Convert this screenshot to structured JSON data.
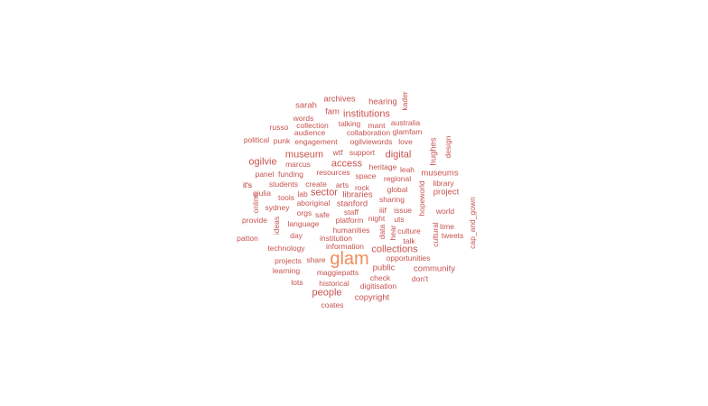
{
  "words": [
    {
      "text": "glam",
      "weight": 10,
      "color": "#f08c5c"
    },
    {
      "text": "ogilvie",
      "weight": 4
    },
    {
      "text": "digital",
      "weight": 4
    },
    {
      "text": "museum",
      "weight": 4
    },
    {
      "text": "access",
      "weight": 4
    },
    {
      "text": "collections",
      "weight": 4
    },
    {
      "text": "people",
      "weight": 4
    },
    {
      "text": "institutions",
      "weight": 4
    },
    {
      "text": "sector",
      "weight": 4
    },
    {
      "text": "copyright",
      "weight": 3
    },
    {
      "text": "public",
      "weight": 3
    },
    {
      "text": "community",
      "weight": 3
    },
    {
      "text": "museums",
      "weight": 3
    },
    {
      "text": "project",
      "weight": 3
    },
    {
      "text": "archives",
      "weight": 3
    },
    {
      "text": "hearing",
      "weight": 3
    },
    {
      "text": "sarah",
      "weight": 3
    },
    {
      "text": "fam",
      "weight": 3
    },
    {
      "text": "libraries",
      "weight": 3
    },
    {
      "text": "stanford",
      "weight": 3
    },
    {
      "text": "hughes",
      "weight": 3
    },
    {
      "text": "kader",
      "weight": 2
    },
    {
      "text": "words",
      "weight": 2
    },
    {
      "text": "russo",
      "weight": 2
    },
    {
      "text": "collection",
      "weight": 2
    },
    {
      "text": "talking",
      "weight": 2
    },
    {
      "text": "mant",
      "weight": 2
    },
    {
      "text": "australia",
      "weight": 2
    },
    {
      "text": "political",
      "weight": 2
    },
    {
      "text": "punk",
      "weight": 2
    },
    {
      "text": "audience",
      "weight": 2
    },
    {
      "text": "collaboration",
      "weight": 2
    },
    {
      "text": "glamfam",
      "weight": 2
    },
    {
      "text": "engagement",
      "weight": 2
    },
    {
      "text": "ogilviewords",
      "weight": 2
    },
    {
      "text": "love",
      "weight": 2
    },
    {
      "text": "design",
      "weight": 2
    },
    {
      "text": "wtf",
      "weight": 2
    },
    {
      "text": "support",
      "weight": 2
    },
    {
      "text": "marcus",
      "weight": 2
    },
    {
      "text": "heritage",
      "weight": 2
    },
    {
      "text": "leah",
      "weight": 2
    },
    {
      "text": "panel",
      "weight": 2
    },
    {
      "text": "funding",
      "weight": 2
    },
    {
      "text": "resources",
      "weight": 2
    },
    {
      "text": "space",
      "weight": 2
    },
    {
      "text": "regional",
      "weight": 2
    },
    {
      "text": "library",
      "weight": 2
    },
    {
      "text": "it's",
      "weight": 2
    },
    {
      "text": "students",
      "weight": 2
    },
    {
      "text": "create",
      "weight": 2
    },
    {
      "text": "arts",
      "weight": 2
    },
    {
      "text": "rock",
      "weight": 2
    },
    {
      "text": "global",
      "weight": 2
    },
    {
      "text": "giulia",
      "weight": 2
    },
    {
      "text": "tools",
      "weight": 2
    },
    {
      "text": "lab",
      "weight": 2
    },
    {
      "text": "sharing",
      "weight": 2
    },
    {
      "text": "online",
      "weight": 2
    },
    {
      "text": "aboriginal",
      "weight": 2
    },
    {
      "text": "hopeworld",
      "weight": 2
    },
    {
      "text": "sydney",
      "weight": 2
    },
    {
      "text": "orgs",
      "weight": 2
    },
    {
      "text": "safe",
      "weight": 2
    },
    {
      "text": "staff",
      "weight": 2
    },
    {
      "text": "iiif",
      "weight": 2
    },
    {
      "text": "issue",
      "weight": 2
    },
    {
      "text": "world",
      "weight": 2
    },
    {
      "text": "cap_and_gown",
      "weight": 2
    },
    {
      "text": "provide",
      "weight": 2
    },
    {
      "text": "ideas",
      "weight": 2
    },
    {
      "text": "language",
      "weight": 2
    },
    {
      "text": "platform",
      "weight": 2
    },
    {
      "text": "night",
      "weight": 2
    },
    {
      "text": "uts",
      "weight": 2
    },
    {
      "text": "time",
      "weight": 2
    },
    {
      "text": "humanities",
      "weight": 2
    },
    {
      "text": "data",
      "weight": 2
    },
    {
      "text": "culture",
      "weight": 2
    },
    {
      "text": "patton",
      "weight": 2
    },
    {
      "text": "day",
      "weight": 2
    },
    {
      "text": "institution",
      "weight": 2
    },
    {
      "text": "tweets",
      "weight": 2
    },
    {
      "text": "talk",
      "weight": 2
    },
    {
      "text": "cultural",
      "weight": 2
    },
    {
      "text": "technology",
      "weight": 2
    },
    {
      "text": "information",
      "weight": 2
    },
    {
      "text": "projects",
      "weight": 2
    },
    {
      "text": "share",
      "weight": 2
    },
    {
      "text": "opportunities",
      "weight": 2
    },
    {
      "text": "learning",
      "weight": 2
    },
    {
      "text": "maggiepatts",
      "weight": 2
    },
    {
      "text": "check",
      "weight": 2
    },
    {
      "text": "don't",
      "weight": 2
    },
    {
      "text": "lots",
      "weight": 2
    },
    {
      "text": "historical",
      "weight": 2
    },
    {
      "text": "digitisation",
      "weight": 2
    },
    {
      "text": "coates",
      "weight": 2
    },
    {
      "text": "hear",
      "weight": 2
    },
    {
      "text": "it's",
      "weight": 2
    }
  ]
}
